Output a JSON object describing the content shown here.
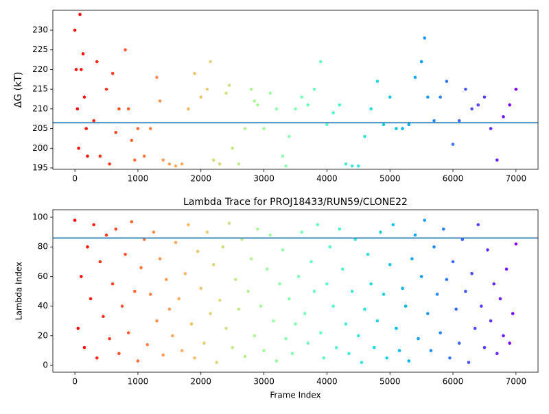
{
  "chart_data": [
    {
      "type": "scatter",
      "ylabel": "ΔG (kT)",
      "colormap": "rainbow_r",
      "point_radius": 2.3,
      "x": [
        0,
        20,
        40,
        60,
        80,
        100,
        130,
        150,
        180,
        200,
        300,
        350,
        400,
        500,
        550,
        600,
        650,
        700,
        800,
        850,
        900,
        950,
        1000,
        1100,
        1200,
        1300,
        1350,
        1400,
        1500,
        1600,
        1700,
        1800,
        1900,
        2000,
        2100,
        2150,
        2200,
        2300,
        2400,
        2450,
        2500,
        2600,
        2700,
        2800,
        2850,
        2900,
        3000,
        3100,
        3200,
        3300,
        3350,
        3400,
        3500,
        3600,
        3700,
        3800,
        3900,
        4000,
        4100,
        4200,
        4300,
        4400,
        4500,
        4600,
        4700,
        4800,
        4900,
        5000,
        5100,
        5200,
        5300,
        5400,
        5500,
        5550,
        5600,
        5700,
        5800,
        5900,
        6000,
        6100,
        6200,
        6300,
        6400,
        6500,
        6600,
        6700,
        6800,
        6900,
        7000
      ],
      "values": [
        230,
        220,
        210,
        200,
        234,
        220,
        224,
        213,
        205,
        198,
        207,
        222,
        198,
        215,
        196,
        219,
        204,
        210,
        225,
        210,
        202,
        197,
        205,
        198,
        205,
        218,
        212,
        197,
        196,
        195.5,
        196,
        210,
        219,
        213,
        215,
        222,
        197,
        196,
        214,
        216,
        200,
        196,
        205,
        215,
        212,
        211,
        205,
        214,
        210,
        198,
        195.5,
        203,
        210,
        213,
        211,
        215,
        222,
        206,
        209,
        211,
        196,
        195.5,
        195.5,
        203,
        210,
        217,
        206,
        213,
        205,
        205,
        206,
        218,
        222,
        228,
        213,
        207,
        213,
        217,
        201,
        207,
        215,
        210,
        211,
        213,
        205,
        197,
        208,
        211,
        215
      ],
      "hline": {
        "value": 206.5,
        "color": "#1f77b4"
      },
      "xlim": [
        -350,
        7350
      ],
      "xticks": [
        0,
        1000,
        2000,
        3000,
        4000,
        5000,
        6000,
        7000
      ],
      "ylim": [
        194.65,
        235.05
      ],
      "yticks": [
        195,
        200,
        205,
        210,
        215,
        220,
        225,
        230
      ]
    },
    {
      "type": "scatter",
      "title": "Lambda Trace for PROJ18433/RUN59/CLONE22",
      "xlabel": "Frame Index",
      "ylabel": "Lambda Index",
      "colormap": "rainbow_r",
      "point_radius": 2.3,
      "x": [
        0,
        50,
        100,
        150,
        200,
        250,
        300,
        350,
        400,
        450,
        500,
        550,
        600,
        650,
        700,
        750,
        800,
        850,
        900,
        950,
        1000,
        1050,
        1100,
        1150,
        1200,
        1250,
        1300,
        1350,
        1400,
        1450,
        1500,
        1550,
        1600,
        1650,
        1700,
        1750,
        1800,
        1850,
        1900,
        1950,
        2000,
        2050,
        2100,
        2150,
        2200,
        2250,
        2300,
        2350,
        2400,
        2450,
        2500,
        2550,
        2600,
        2650,
        2700,
        2750,
        2800,
        2850,
        2900,
        2950,
        3000,
        3050,
        3100,
        3150,
        3200,
        3250,
        3300,
        3350,
        3400,
        3450,
        3500,
        3550,
        3600,
        3650,
        3700,
        3750,
        3800,
        3850,
        3900,
        3950,
        4000,
        4050,
        4100,
        4150,
        4200,
        4250,
        4300,
        4350,
        4400,
        4450,
        4500,
        4550,
        4600,
        4650,
        4700,
        4750,
        4800,
        4850,
        4900,
        4950,
        5000,
        5050,
        5100,
        5150,
        5200,
        5250,
        5300,
        5350,
        5400,
        5450,
        5500,
        5550,
        5600,
        5650,
        5700,
        5750,
        5800,
        5850,
        5900,
        5950,
        6000,
        6050,
        6100,
        6150,
        6200,
        6250,
        6300,
        6350,
        6400,
        6450,
        6500,
        6550,
        6600,
        6650,
        6700,
        6750,
        6800,
        6850,
        6900,
        6950,
        7000
      ],
      "values": [
        98,
        25,
        60,
        12,
        80,
        45,
        95,
        5,
        70,
        33,
        88,
        18,
        55,
        92,
        8,
        40,
        75,
        22,
        97,
        50,
        3,
        66,
        85,
        14,
        48,
        90,
        30,
        72,
        7,
        58,
        38,
        20,
        83,
        45,
        10,
        62,
        95,
        28,
        5,
        77,
        52,
        15,
        90,
        35,
        68,
        2,
        44,
        80,
        25,
        96,
        12,
        58,
        38,
        85,
        6,
        50,
        72,
        20,
        92,
        40,
        10,
        65,
        88,
        30,
        3,
        55,
        78,
        18,
        45,
        8,
        28,
        60,
        90,
        35,
        15,
        70,
        50,
        95,
        22,
        5,
        55,
        80,
        40,
        12,
        92,
        65,
        28,
        8,
        50,
        85,
        20,
        2,
        38,
        75,
        55,
        12,
        30,
        90,
        48,
        5,
        68,
        95,
        25,
        10,
        52,
        40,
        3,
        72,
        88,
        18,
        60,
        98,
        35,
        10,
        80,
        48,
        22,
        92,
        58,
        5,
        70,
        38,
        15,
        85,
        50,
        2,
        62,
        25,
        95,
        40,
        12,
        78,
        30,
        55,
        8,
        45,
        20,
        65,
        15,
        35,
        82
      ],
      "hline": {
        "value": 86,
        "color": "#1f77b4"
      },
      "xlim": [
        -350,
        7350
      ],
      "xticks": [
        0,
        1000,
        2000,
        3000,
        4000,
        5000,
        6000,
        7000
      ],
      "ylim": [
        -4.6,
        105.1
      ],
      "yticks": [
        0,
        20,
        40,
        60,
        80,
        100
      ]
    }
  ]
}
